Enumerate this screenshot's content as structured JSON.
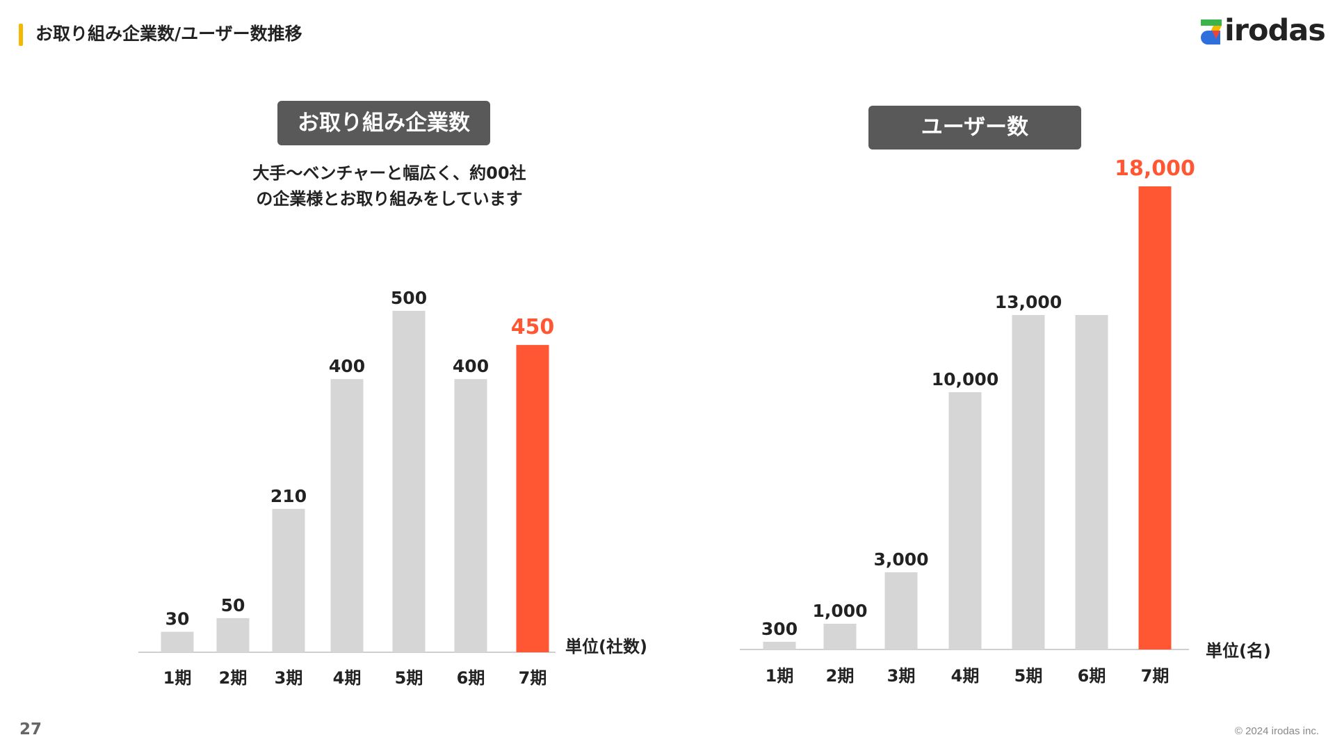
{
  "header": {
    "title": "お取り組み企業数/ユーザー数推移"
  },
  "logo": {
    "text": "irodas"
  },
  "page_number": "27",
  "copyright": "© 2024 irodas inc.",
  "colors": {
    "bar": "#d6d6d6",
    "highlight": "#ff5733",
    "accent": "#f5b800",
    "title_bg": "#595959"
  },
  "left_panel": {
    "title": "お取り組み企業数",
    "description": [
      "大手〜ベンチャーと幅広く、約00社",
      "の企業様とお取り組みをしています"
    ]
  },
  "right_panel": {
    "title": "ユーザー数"
  },
  "chart_data": [
    {
      "type": "bar",
      "title": "お取り組み企業数",
      "categories": [
        "1期",
        "2期",
        "3期",
        "4期",
        "5期",
        "6期",
        "7期"
      ],
      "values": [
        30,
        50,
        210,
        400,
        500,
        400,
        450
      ],
      "value_labels": [
        "30",
        "50",
        "210",
        "400",
        "500",
        "400",
        "450"
      ],
      "highlight_index": 6,
      "unit_label": "単位(社数)",
      "ylim": [
        0,
        500
      ],
      "grid": false
    },
    {
      "type": "bar",
      "title": "ユーザー数",
      "categories": [
        "1期",
        "2期",
        "3期",
        "4期",
        "5期",
        "6期",
        "7期"
      ],
      "values": [
        300,
        1000,
        3000,
        10000,
        13000,
        13000,
        18000
      ],
      "value_labels": [
        "300",
        "1,000",
        "3,000",
        "10,000",
        "13,000",
        "",
        "18,000"
      ],
      "highlight_index": 6,
      "unit_label": "単位(名)",
      "ylim": [
        0,
        18000
      ],
      "grid": false
    }
  ]
}
